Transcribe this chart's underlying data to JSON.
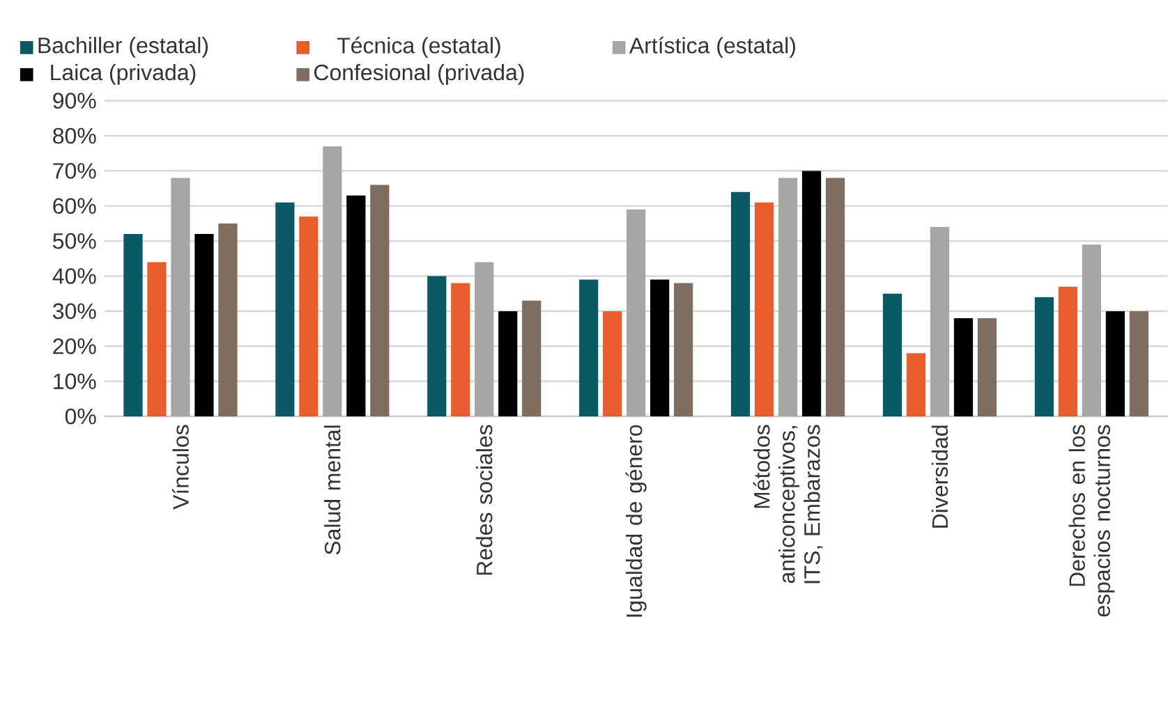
{
  "chart_data": {
    "type": "bar",
    "categories": [
      "Vínculos",
      "Salud mental",
      "Redes sociales",
      "Igualdad de género",
      "Métodos anticonceptivos, ITS, Embarazos",
      "Diversidad",
      "Derechos en los espacios nocturnos"
    ],
    "series": [
      {
        "name": "Bachiller (estatal)",
        "color": "#0a5a66",
        "values": [
          52,
          61,
          40,
          39,
          64,
          35,
          34
        ]
      },
      {
        "name": "Técnica (estatal)",
        "color": "#e95c2e",
        "values": [
          44,
          57,
          38,
          30,
          61,
          18,
          37
        ]
      },
      {
        "name": "Artística (estatal)",
        "color": "#a6a6a6",
        "values": [
          68,
          77,
          44,
          59,
          68,
          54,
          49
        ]
      },
      {
        "name": "Laica (privada)",
        "color": "#000000",
        "values": [
          52,
          63,
          30,
          39,
          70,
          28,
          30
        ]
      },
      {
        "name": "Confesional (privada)",
        "color": "#7f6e5f",
        "values": [
          55,
          66,
          33,
          38,
          68,
          28,
          30
        ]
      }
    ],
    "ylim": [
      0,
      90
    ],
    "yticks": [
      {
        "value": 0,
        "label": "0%"
      },
      {
        "value": 10,
        "label": "10%"
      },
      {
        "value": 20,
        "label": "20%"
      },
      {
        "value": 30,
        "label": "30%"
      },
      {
        "value": 40,
        "label": "40%"
      },
      {
        "value": 50,
        "label": "50%"
      },
      {
        "value": 60,
        "label": "60%"
      },
      {
        "value": 70,
        "label": "70%"
      },
      {
        "value": 80,
        "label": "80%"
      },
      {
        "value": 90,
        "label": "90%"
      }
    ],
    "grid": "y",
    "legend": "top"
  }
}
